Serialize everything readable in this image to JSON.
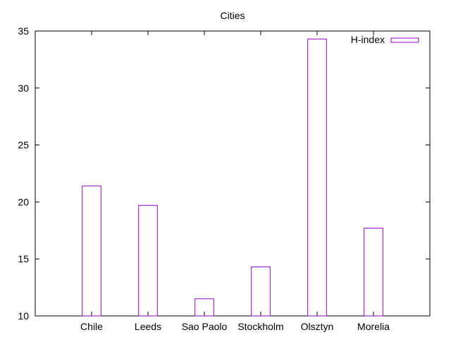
{
  "chart_data": {
    "type": "bar",
    "title": "Cities",
    "xlabel": "",
    "ylabel": "",
    "categories": [
      "Chile",
      "Leeds",
      "Sao Paolo",
      "Stockholm",
      "Olsztyn",
      "Morelia"
    ],
    "series": [
      {
        "name": "H-index",
        "values": [
          21.4,
          19.7,
          11.5,
          14.3,
          34.3,
          17.7
        ],
        "color": "#9400d3"
      }
    ],
    "ylim": [
      10,
      35
    ],
    "yticks": [
      10,
      15,
      20,
      25,
      30,
      35
    ],
    "grid": false,
    "legend": "top-right"
  }
}
